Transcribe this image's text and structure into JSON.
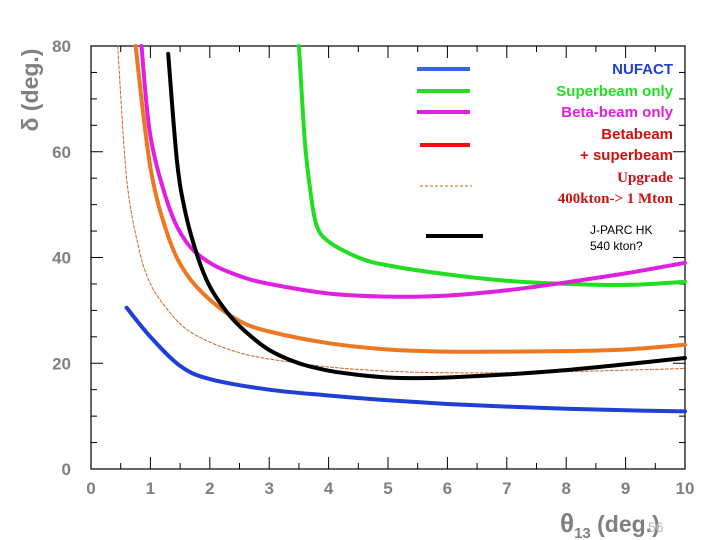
{
  "chart_data": {
    "type": "line",
    "title": "",
    "xlabel": "θ₁₃ (deg.)",
    "xlabel_main": "θ",
    "xlabel_sub": "13",
    "xlabel_unit": " (deg.)",
    "ylabel": "δ (deg.)",
    "xlim": [
      0,
      10
    ],
    "ylim": [
      0,
      80
    ],
    "xticks": [
      0,
      1,
      2,
      3,
      4,
      5,
      6,
      7,
      8,
      9,
      10
    ],
    "yticks": [
      0,
      20,
      40,
      60,
      80
    ],
    "grid": false,
    "legend_position": "top-right",
    "series": [
      {
        "name": "NUFACT",
        "color": "#1f3fd6",
        "style": "solid",
        "x": [
          0.6,
          1.0,
          1.5,
          2.0,
          3.0,
          4.0,
          5.0,
          6.0,
          7.0,
          8.0,
          9.0,
          10.0
        ],
        "y": [
          30.5,
          25.0,
          19.5,
          17.0,
          15.0,
          13.9,
          13.0,
          12.3,
          11.8,
          11.4,
          11.1,
          10.9
        ]
      },
      {
        "name": "Superbeam only",
        "color": "#22dd22",
        "style": "solid",
        "x": [
          3.5,
          3.6,
          3.7,
          3.8,
          4.0,
          4.5,
          5.0,
          6.0,
          7.0,
          8.0,
          9.0,
          10.0
        ],
        "y": [
          80,
          62,
          52,
          46,
          43,
          40,
          38.5,
          36.8,
          35.6,
          35.0,
          34.8,
          35.4
        ]
      },
      {
        "name": "Beta-beam only",
        "color": "#e020e0",
        "style": "solid",
        "x": [
          0.85,
          1.0,
          1.3,
          1.6,
          2.0,
          2.5,
          3.0,
          4.0,
          5.0,
          6.0,
          7.0,
          8.0,
          9.0,
          10.0
        ],
        "y": [
          80,
          63,
          50,
          43,
          39,
          36.5,
          35.0,
          33.2,
          32.6,
          32.8,
          33.8,
          35.3,
          37.0,
          39.0
        ]
      },
      {
        "name": "Betabeam + superbeam",
        "color": "#ee7722",
        "style": "solid",
        "x": [
          0.75,
          1.0,
          1.3,
          1.6,
          2.0,
          2.5,
          3.0,
          4.0,
          5.0,
          6.0,
          7.0,
          8.0,
          9.0,
          10.0
        ],
        "y": [
          80,
          57,
          44,
          37.0,
          32.0,
          28.0,
          26.0,
          23.8,
          22.6,
          22.2,
          22.2,
          22.3,
          22.6,
          23.5
        ]
      },
      {
        "name": "Upgrade 400kton-> 1 Mton",
        "color": "#cc6622",
        "style": "dashed",
        "x": [
          0.45,
          0.6,
          0.8,
          1.0,
          1.3,
          1.6,
          2.0,
          2.5,
          3.0,
          4.0,
          5.0,
          6.0,
          7.0,
          8.0,
          9.0,
          10.0
        ],
        "y": [
          80,
          55,
          42,
          35.0,
          30.0,
          26.5,
          24.0,
          22.0,
          20.8,
          19.3,
          18.5,
          18.2,
          18.2,
          18.4,
          18.7,
          19.0
        ]
      },
      {
        "name": "J-PARC HK 540 kton?",
        "color": "#000000",
        "style": "solid",
        "x": [
          1.3,
          1.45,
          1.6,
          1.8,
          2.0,
          2.3,
          2.6,
          3.0,
          3.5,
          4.0,
          4.5,
          5.0,
          5.5,
          6.0,
          7.0,
          8.0,
          9.0,
          10.0
        ],
        "y": [
          78.5,
          58,
          48,
          40,
          34.5,
          29.5,
          26.0,
          22.5,
          20.0,
          18.6,
          17.8,
          17.3,
          17.2,
          17.3,
          17.9,
          18.7,
          19.8,
          21.0
        ]
      }
    ],
    "legend": [
      {
        "lines": [
          "NUFACT"
        ],
        "color": "#1f3fd6",
        "swatch": "solid-blue",
        "font": "sans"
      },
      {
        "lines": [
          "Superbeam only"
        ],
        "color": "#22dd22",
        "swatch": "solid-green",
        "font": "sans"
      },
      {
        "lines": [
          "Beta-beam only"
        ],
        "color": "#e020e0",
        "swatch": "solid-magenta",
        "font": "sans"
      },
      {
        "lines": [
          "Betabeam",
          "+ superbeam"
        ],
        "color": "#cc1111",
        "swatch": "solid-red",
        "font": "sans"
      },
      {
        "lines": [
          "Upgrade",
          "400kton-> 1 Mton"
        ],
        "color": "#cc1111",
        "swatch": "dashed-orange",
        "font": "serif"
      },
      {
        "lines": [
          "J-PARC HK",
          "540 kton?"
        ],
        "color": "#000000",
        "swatch": "solid-black",
        "font": "small"
      }
    ],
    "page_number": "56"
  }
}
